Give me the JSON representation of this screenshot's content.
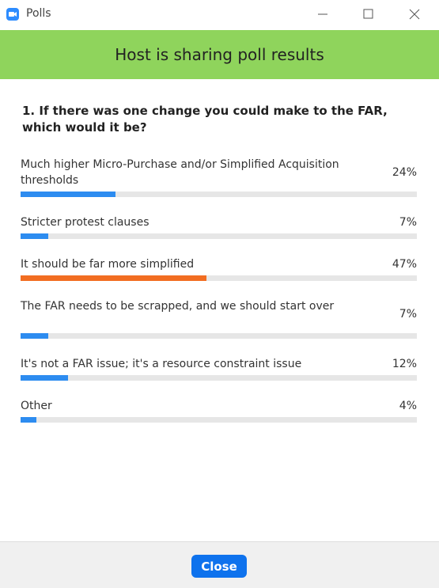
{
  "window": {
    "title": "Polls"
  },
  "banner": {
    "text": "Host is sharing poll results"
  },
  "question": {
    "text": "1. If there was one change you could make to the FAR, which would it be?"
  },
  "options": [
    {
      "text": "Much higher Micro-Purchase and/or Simplified Acquisition thresholds",
      "value": 24,
      "value_label": "24%",
      "color": "#2d8cf0"
    },
    {
      "text": "Stricter protest clauses",
      "value": 7,
      "value_label": "7%",
      "color": "#2d8cf0"
    },
    {
      "text": "It should be far more simplified",
      "value": 47,
      "value_label": "47%",
      "color": "#f26d21"
    },
    {
      "text": "The FAR needs to be scrapped, and we should start over",
      "value": 7,
      "value_label": "7%",
      "color": "#2d8cf0"
    },
    {
      "text": "It's not a FAR issue; it's a resource constraint issue",
      "value": 12,
      "value_label": "12%",
      "color": "#2d8cf0"
    },
    {
      "text": "Other",
      "value": 4,
      "value_label": "4%",
      "color": "#2d8cf0"
    }
  ],
  "footer": {
    "button": "Close"
  }
}
